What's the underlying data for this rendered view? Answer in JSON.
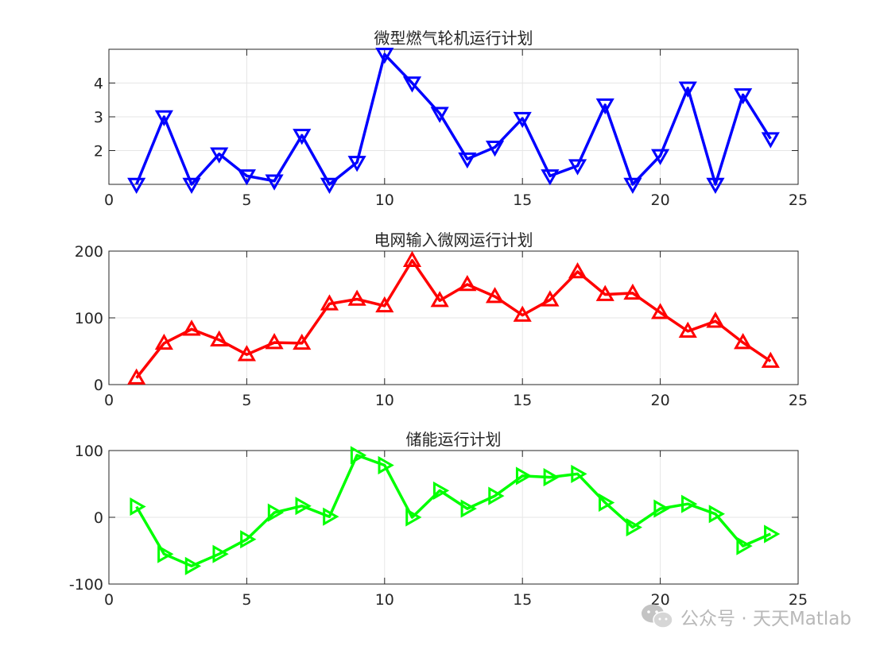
{
  "watermark": {
    "text": "公众号 · 天天Matlab",
    "icon": "wechat-icon"
  },
  "chart_data": [
    {
      "type": "line",
      "title": "微型燃气轮机运行计划",
      "xlim": [
        0,
        25
      ],
      "ylim": [
        1,
        5
      ],
      "xticks": [
        0,
        5,
        10,
        15,
        20,
        25
      ],
      "yticks": [
        2,
        3,
        4
      ],
      "grid": true,
      "marker": "triangle-down",
      "color": "#0000ff",
      "x": [
        1,
        2,
        3,
        4,
        5,
        6,
        7,
        8,
        9,
        10,
        11,
        12,
        13,
        14,
        15,
        16,
        17,
        18,
        19,
        20,
        21,
        22,
        23,
        24
      ],
      "values": [
        1.0,
        3.0,
        1.0,
        1.9,
        1.25,
        1.1,
        2.45,
        1.0,
        1.65,
        4.85,
        4.0,
        3.1,
        1.75,
        2.1,
        2.95,
        1.25,
        1.55,
        3.35,
        1.0,
        1.85,
        3.85,
        1.0,
        3.65,
        2.35
      ]
    },
    {
      "type": "line",
      "title": "电网输入微网运行计划",
      "xlim": [
        0,
        25
      ],
      "ylim": [
        0,
        200
      ],
      "xticks": [
        0,
        5,
        10,
        15,
        20,
        25
      ],
      "yticks": [
        0,
        100,
        200
      ],
      "grid": true,
      "marker": "triangle-up",
      "color": "#ff0000",
      "x": [
        1,
        2,
        3,
        4,
        5,
        6,
        7,
        8,
        9,
        10,
        11,
        12,
        13,
        14,
        15,
        16,
        17,
        18,
        19,
        20,
        21,
        22,
        23,
        24
      ],
      "values": [
        10,
        62,
        83,
        67,
        45,
        63,
        62,
        121,
        128,
        118,
        186,
        126,
        150,
        132,
        104,
        127,
        169,
        135,
        137,
        108,
        80,
        95,
        63,
        35
      ]
    },
    {
      "type": "line",
      "title": "储能运行计划",
      "xlim": [
        0,
        25
      ],
      "ylim": [
        -100,
        100
      ],
      "xticks": [
        0,
        5,
        10,
        15,
        20,
        25
      ],
      "yticks": [
        -100,
        0,
        100
      ],
      "grid": true,
      "marker": "triangle-right",
      "color": "#00ff00",
      "x": [
        1,
        2,
        3,
        4,
        5,
        6,
        7,
        8,
        9,
        10,
        11,
        12,
        13,
        14,
        15,
        16,
        17,
        18,
        19,
        20,
        21,
        22,
        23,
        24
      ],
      "values": [
        16,
        -55,
        -73,
        -55,
        -33,
        7,
        17,
        1,
        93,
        78,
        0,
        40,
        13,
        32,
        62,
        60,
        65,
        22,
        -15,
        13,
        20,
        5,
        -43,
        -25
      ]
    }
  ]
}
